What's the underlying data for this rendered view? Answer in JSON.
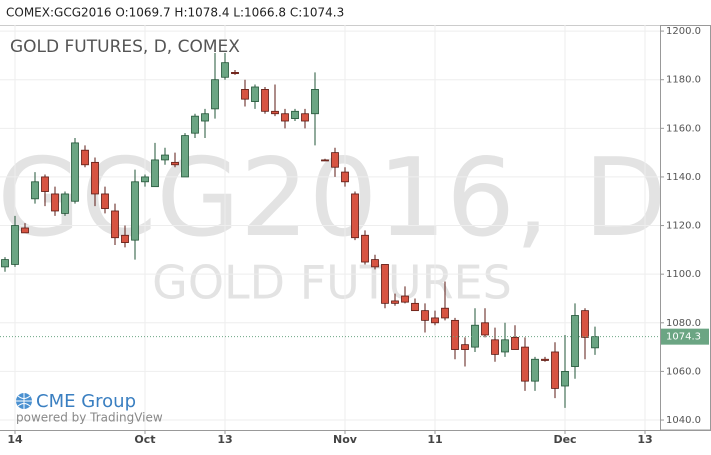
{
  "header": "COMEX:GCG2016 O:1069.7 H:1078.4 L:1066.8 C:1074.3",
  "logo": {
    "name": "CME Group",
    "tagline": "powered by TradingView"
  },
  "chart_data": {
    "type": "candlestick",
    "title": "GOLD FUTURES, D, COMEX",
    "watermark": [
      "GCG2016, D",
      "GOLD FUTURES"
    ],
    "categories": [
      null,
      "14",
      null,
      null,
      null,
      null,
      null,
      null,
      null,
      null,
      null,
      null,
      null,
      null,
      "Oct",
      null,
      null,
      null,
      null,
      null,
      null,
      null,
      "13",
      null,
      null,
      null,
      null,
      null,
      null,
      null,
      null,
      null,
      null,
      null,
      "Nov",
      null,
      null,
      null,
      null,
      null,
      null,
      null,
      null,
      "11",
      null,
      null,
      null,
      null,
      null,
      null,
      null,
      null,
      null,
      null,
      null,
      null,
      "Dec",
      null,
      null,
      null,
      null,
      null,
      null,
      null,
      "13",
      null
    ],
    "open": [
      1103,
      1104,
      1119,
      1131,
      1140,
      1133,
      1125,
      1130,
      1151,
      1146,
      1133,
      1126,
      1116,
      1114,
      1138,
      1136,
      1147,
      1146,
      1140,
      1158,
      1163,
      1168,
      1181,
      1183,
      1176,
      1171,
      1176,
      1167,
      1166,
      1164,
      1166,
      1166,
      1147,
      1150,
      1142,
      1133,
      1116,
      1106,
      1104,
      1089,
      1091,
      1088,
      1085,
      1082,
      1086,
      1081,
      1071,
      1070,
      1080,
      1073,
      1068,
      1074,
      1070,
      1056,
      1065,
      1068,
      1054,
      1062,
      1085,
      1069.7,
      null,
      null,
      null,
      null,
      null,
      null
    ],
    "high": [
      1107,
      1124,
      1121,
      1142,
      1141,
      1136,
      1134,
      1156,
      1153,
      1148,
      1136,
      1129,
      1120,
      1143,
      1141,
      1154,
      1152,
      1150,
      1158,
      1166,
      1168,
      1191,
      1191,
      1184,
      1180,
      1178,
      1177,
      1178,
      1168,
      1168,
      1168,
      1183,
      1147.5,
      1152,
      1144,
      1134,
      1118,
      1108,
      1104,
      1092,
      1095,
      1090,
      1088,
      1085,
      1097,
      1082,
      1074,
      1086,
      1086,
      1078,
      1080,
      1079,
      1074,
      1066,
      1066,
      1072,
      1075,
      1088,
      1086,
      1078.4,
      null,
      null,
      null,
      null,
      null,
      null
    ],
    "low": [
      1101,
      1103,
      1117,
      1129,
      1128,
      1124,
      1124,
      1129,
      1144,
      1128,
      1125,
      1112,
      1111,
      1106,
      1136,
      1136,
      1145,
      1144,
      1140,
      1156,
      1156,
      1164,
      1180,
      1182,
      1169,
      1168,
      1166,
      1165,
      1160,
      1163,
      1160,
      1153,
      1146.5,
      1140,
      1136,
      1114,
      1104,
      1102,
      1086,
      1087,
      1088,
      1085,
      1076,
      1079,
      1081,
      1065,
      1062,
      1068,
      1074,
      1064,
      1066,
      1069,
      1052,
      1052,
      1064,
      1049,
      1045,
      1057,
      1065,
      1066.8,
      null,
      null,
      null,
      null,
      null,
      null
    ],
    "close": [
      1106,
      1120,
      1117,
      1138,
      1134,
      1126,
      1133,
      1154,
      1145,
      1133,
      1127,
      1115,
      1113,
      1138,
      1140,
      1147,
      1149,
      1145,
      1157,
      1165,
      1166,
      1180,
      1187,
      1182.5,
      1172,
      1177,
      1167,
      1166,
      1163,
      1167,
      1163,
      1176,
      1146.8,
      1144,
      1138,
      1115,
      1105,
      1103,
      1088,
      1088,
      1088.5,
      1085,
      1081,
      1080,
      1082,
      1069,
      1069,
      1079,
      1075,
      1067,
      1073,
      1069,
      1056,
      1065,
      1064.5,
      1053,
      1060,
      1083,
      1074,
      1074.3,
      null,
      null,
      null,
      null,
      null,
      null
    ],
    "up_color": "#6ba583",
    "down_color": "#d75442",
    "ylim": [
      1035.9,
      1202.5
    ],
    "yticks": [
      {
        "value": 1040,
        "label": "1040.0"
      },
      {
        "value": 1060,
        "label": "1060.0"
      },
      {
        "value": 1080,
        "label": "1080.0"
      },
      {
        "value": 1100,
        "label": "1100.0"
      },
      {
        "value": 1120,
        "label": "1120.0"
      },
      {
        "value": 1140,
        "label": "1140.0"
      },
      {
        "value": 1160,
        "label": "1160.0"
      },
      {
        "value": 1180,
        "label": "1180.0"
      },
      {
        "value": 1200,
        "label": "1200.0"
      }
    ],
    "grid": true
  }
}
